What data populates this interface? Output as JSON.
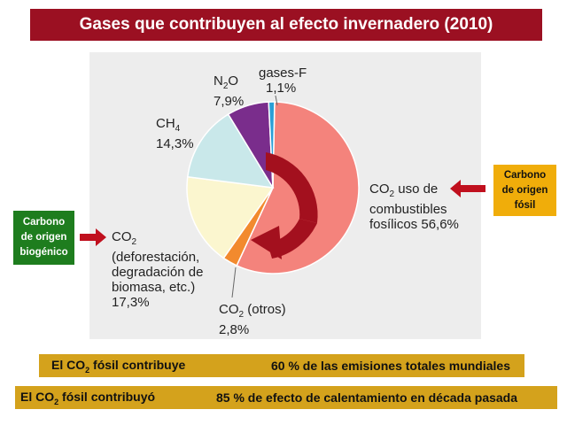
{
  "title": "Gases que contribuyen al efecto invernadero (2010)",
  "chart_data": {
    "type": "pie",
    "slices": [
      {
        "name": "CO2 uso de combustibles fosílicos",
        "value": 56.6,
        "color": "#f4837c"
      },
      {
        "name": "CO2 (otros)",
        "value": 2.8,
        "color": "#f28a2e"
      },
      {
        "name": "CO2 (deforestación, degradación de biomasa, etc.)",
        "value": 17.3,
        "color": "#fbf6cf"
      },
      {
        "name": "CH4",
        "value": 14.3,
        "color": "#c9e8ea"
      },
      {
        "name": "N2O",
        "value": 7.9,
        "color": "#7a2d8c"
      },
      {
        "name": "gases-F",
        "value": 1.1,
        "color": "#2b9fd6"
      }
    ],
    "labels": {
      "fossil_line1": "uso de",
      "fossil_line2": "combustibles",
      "fossil_line3": "fosílicos 56,6%",
      "other_line1": "(otros)",
      "other_line2": "2,8%",
      "defor_line1": "(deforestación,",
      "defor_line2": "degradación de",
      "defor_line3": "biomasa, etc.)",
      "defor_line4": "17,3%",
      "ch4_pct": "14,3%",
      "n2o_pct": "7,9%",
      "fgas_name": "gases-F",
      "fgas_pct": "1,1%"
    }
  },
  "callouts": {
    "fossil": [
      "Carbono",
      "de origen",
      "fósil"
    ],
    "biogenic": [
      "Carbono",
      "de origen",
      "biogénico"
    ]
  },
  "bottom": {
    "row1_left_a": "El CO",
    "row1_left_b": " fósil contribuye",
    "row1_right": "60 % de las emisiones totales mundiales",
    "row2_left_a": "El CO",
    "row2_left_b": " fósil contribuyó",
    "row2_right": "85 % de efecto de calentamiento en década pasada",
    "sub2": "2"
  },
  "colors": {
    "title_bg": "#9b1022",
    "arrow": "#c0101e",
    "inner_arrow": "#a3101e",
    "bar_bg": "#d4a21c"
  }
}
